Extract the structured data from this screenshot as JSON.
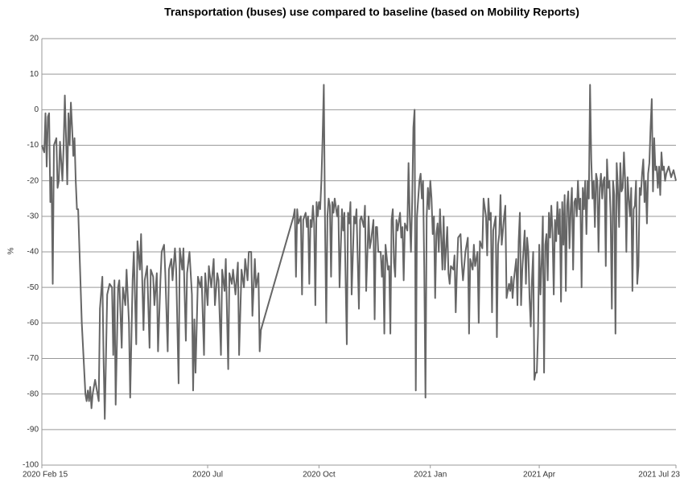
{
  "chart_data": {
    "type": "line",
    "title": "Transportation (buses) use compared to baseline (based on Mobility Reports)",
    "y_label": "%",
    "color": "#666666",
    "grid": true,
    "xlim": [
      0,
      524
    ],
    "xticks": [
      {
        "value": 0,
        "label": "2020 Feb 15"
      },
      {
        "value": 137,
        "label": "2020 Jul"
      },
      {
        "value": 229,
        "label": "2020 Oct"
      },
      {
        "value": 321,
        "label": "2021 Jan"
      },
      {
        "value": 411,
        "label": "2021 Apr"
      },
      {
        "value": 524,
        "label": "2021 Jul 23"
      }
    ],
    "ylim": [
      -100,
      20
    ],
    "yticks": [
      20,
      10,
      0,
      -10,
      -20,
      -30,
      -40,
      -50,
      -60,
      -70,
      -80,
      -90,
      -100
    ],
    "x": [
      0,
      2,
      3,
      4,
      5,
      6,
      7,
      8,
      9,
      10,
      12,
      13,
      14,
      15,
      17,
      18,
      19,
      20,
      21,
      22,
      23,
      24,
      25,
      26,
      27,
      28,
      29,
      30,
      33,
      36,
      37,
      38,
      39,
      40,
      41,
      42,
      44,
      45,
      47,
      48,
      50,
      51,
      52,
      54,
      56,
      58,
      59,
      60,
      61,
      63,
      64,
      66,
      67,
      69,
      70,
      72,
      73,
      75,
      76,
      78,
      79,
      81,
      82,
      84,
      85,
      87,
      89,
      90,
      92,
      93,
      95,
      96,
      98,
      99,
      101,
      102,
      104,
      105,
      107,
      108,
      110,
      111,
      113,
      114,
      116,
      117,
      119,
      120,
      122,
      124,
      125,
      126,
      127,
      129,
      131,
      132,
      134,
      135,
      137,
      138,
      140,
      142,
      143,
      145,
      146,
      148,
      149,
      151,
      152,
      154,
      155,
      157,
      158,
      160,
      162,
      163,
      165,
      167,
      168,
      170,
      171,
      173,
      174,
      176,
      177,
      179,
      180,
      181,
      208,
      209,
      210,
      211,
      212,
      213,
      214,
      215,
      216,
      218,
      219,
      220,
      221,
      222,
      223,
      224,
      225,
      226,
      227,
      228,
      229,
      230,
      231,
      232,
      233,
      234,
      235,
      236,
      237,
      238,
      239,
      240,
      241,
      242,
      244,
      245,
      246,
      248,
      249,
      250,
      252,
      253,
      254,
      255,
      256,
      258,
      259,
      260,
      262,
      263,
      264,
      266,
      267,
      268,
      270,
      271,
      272,
      274,
      275,
      276,
      277,
      278,
      280,
      281,
      282,
      283,
      284,
      286,
      287,
      288,
      289,
      290,
      291,
      292,
      293,
      294,
      296,
      297,
      298,
      299,
      300,
      302,
      303,
      304,
      305,
      306,
      307,
      308,
      309,
      310,
      311,
      312,
      313,
      314,
      315,
      316,
      317,
      318,
      319,
      320,
      321,
      322,
      323,
      324,
      325,
      326,
      327,
      328,
      329,
      330,
      331,
      332,
      333,
      335,
      336,
      337,
      338,
      340,
      341,
      342,
      343,
      344,
      346,
      347,
      348,
      349,
      350,
      352,
      353,
      354,
      356,
      357,
      358,
      360,
      361,
      362,
      364,
      365,
      367,
      368,
      369,
      370,
      371,
      372,
      373,
      375,
      376,
      377,
      378,
      379,
      380,
      382,
      383,
      384,
      386,
      387,
      388,
      389,
      390,
      392,
      393,
      394,
      395,
      396,
      397,
      399,
      400,
      401,
      402,
      403,
      404,
      405,
      406,
      407,
      408,
      409,
      410,
      411,
      412,
      413,
      414,
      415,
      416,
      417,
      418,
      419,
      420,
      421,
      422,
      423,
      424,
      425,
      426,
      427,
      428,
      429,
      430,
      431,
      432,
      433,
      434,
      435,
      436,
      437,
      438,
      439,
      440,
      441,
      442,
      443,
      444,
      445,
      446,
      447,
      448,
      449,
      450,
      451,
      452,
      453,
      454,
      455,
      456,
      457,
      458,
      459,
      460,
      461,
      462,
      463,
      464,
      465,
      466,
      467,
      468,
      469,
      470,
      471,
      472,
      473,
      474,
      475,
      476,
      477,
      478,
      479,
      480,
      481,
      482,
      483,
      484,
      485,
      486,
      487,
      488,
      489,
      490,
      491,
      492,
      493,
      494,
      495,
      496,
      497,
      498,
      499,
      500,
      501,
      502,
      503,
      504,
      505,
      506,
      507,
      508,
      509,
      510,
      511,
      512,
      513,
      514,
      515,
      516,
      518,
      520,
      522,
      524
    ],
    "values": [
      -10,
      -12,
      -1,
      -16,
      -2,
      -1,
      -26,
      -19,
      -49,
      -10,
      -8,
      -22,
      -20,
      -9,
      -20,
      -10,
      4,
      -8,
      -21,
      -1,
      -10,
      2,
      -5,
      -13,
      -8,
      -20,
      -28,
      -28,
      -60,
      -80,
      -82,
      -79,
      -82,
      -78,
      -84,
      -80,
      -76,
      -78,
      -82,
      -56,
      -47,
      -70,
      -87,
      -52,
      -49,
      -50,
      -69,
      -48,
      -83,
      -50,
      -48,
      -67,
      -50,
      -55,
      -45,
      -60,
      -81,
      -48,
      -40,
      -66,
      -37,
      -45,
      -35,
      -62,
      -48,
      -44,
      -67,
      -45,
      -47,
      -55,
      -46,
      -68,
      -48,
      -40,
      -38,
      -46,
      -68,
      -45,
      -42,
      -48,
      -39,
      -45,
      -77,
      -39,
      -45,
      -39,
      -65,
      -46,
      -40,
      -52,
      -79,
      -59,
      -74,
      -47,
      -50,
      -47,
      -69,
      -46,
      -55,
      -44,
      -50,
      -42,
      -55,
      -46,
      -48,
      -69,
      -45,
      -51,
      -42,
      -73,
      -46,
      -49,
      -45,
      -52,
      -43,
      -69,
      -45,
      -50,
      -42,
      -48,
      -40,
      -40,
      -58,
      -42,
      -50,
      -46,
      -68,
      -62,
      -30,
      -28,
      -47,
      -28,
      -32,
      -31,
      -30,
      -52,
      -31,
      -29,
      -33,
      -30,
      -49,
      -31,
      -33,
      -27,
      -32,
      -55,
      -26,
      -30,
      -26,
      -28,
      -20,
      -8,
      7,
      -32,
      -60,
      -30,
      -25,
      -27,
      -47,
      -26,
      -29,
      -25,
      -30,
      -27,
      -50,
      -28,
      -34,
      -29,
      -66,
      -29,
      -32,
      -26,
      -52,
      -30,
      -32,
      -28,
      -56,
      -31,
      -30,
      -33,
      -27,
      -51,
      -30,
      -39,
      -37,
      -31,
      -59,
      -33,
      -33,
      -40,
      -40,
      -47,
      -41,
      -63,
      -38,
      -45,
      -44,
      -63,
      -31,
      -28,
      -43,
      -47,
      -31,
      -34,
      -29,
      -36,
      -33,
      -48,
      -32,
      -34,
      -15,
      -30,
      -40,
      -26,
      -5,
      0,
      -79,
      -30,
      -25,
      -20,
      -18,
      -25,
      -20,
      -45,
      -81,
      -30,
      -22,
      -28,
      -20,
      -25,
      -35,
      -30,
      -53,
      -35,
      -32,
      -40,
      -28,
      -36,
      -45,
      -30,
      -45,
      -33,
      -46,
      -49,
      -44,
      -45,
      -41,
      -57,
      -45,
      -36,
      -35,
      -43,
      -48,
      -44,
      -40,
      -36,
      -63,
      -42,
      -45,
      -38,
      -44,
      -40,
      -60,
      -37,
      -39,
      -25,
      -30,
      -41,
      -25,
      -31,
      -29,
      -57,
      -34,
      -30,
      -64,
      -38,
      -35,
      -24,
      -38,
      -30,
      -27,
      -53,
      -49,
      -51,
      -47,
      -53,
      -48,
      -42,
      -55,
      -37,
      -29,
      -55,
      -45,
      -34,
      -49,
      -36,
      -40,
      -53,
      -61,
      -48,
      -40,
      -76,
      -74,
      -74,
      -63,
      -38,
      -52,
      -43,
      -30,
      -74,
      -38,
      -35,
      -48,
      -29,
      -36,
      -27,
      -35,
      -52,
      -31,
      -37,
      -26,
      -35,
      -28,
      -54,
      -26,
      -38,
      -24,
      -51,
      -27,
      -23,
      -39,
      -28,
      -22,
      -45,
      -26,
      -25,
      -30,
      -20,
      -28,
      -25,
      -50,
      -22,
      -28,
      -20,
      -35,
      -20,
      -25,
      7,
      -14,
      -25,
      -20,
      -33,
      -18,
      -20,
      -40,
      -22,
      -18,
      -25,
      -20,
      -19,
      -44,
      -14,
      -22,
      -20,
      -30,
      -56,
      -20,
      -24,
      -63,
      -15,
      -22,
      -33,
      -15,
      -23,
      -22,
      -12,
      -20,
      -40,
      -19,
      -25,
      -30,
      -22,
      -51,
      -28,
      -27,
      -20,
      -49,
      -44,
      -22,
      -24,
      -18,
      -14,
      -26,
      -20,
      -32,
      -18,
      -15,
      -5,
      3,
      -23,
      -8,
      -17,
      -16,
      -22,
      -16,
      -24,
      -12,
      -17,
      -16,
      -20,
      -18,
      -16,
      -19,
      -17,
      -20
    ]
  }
}
